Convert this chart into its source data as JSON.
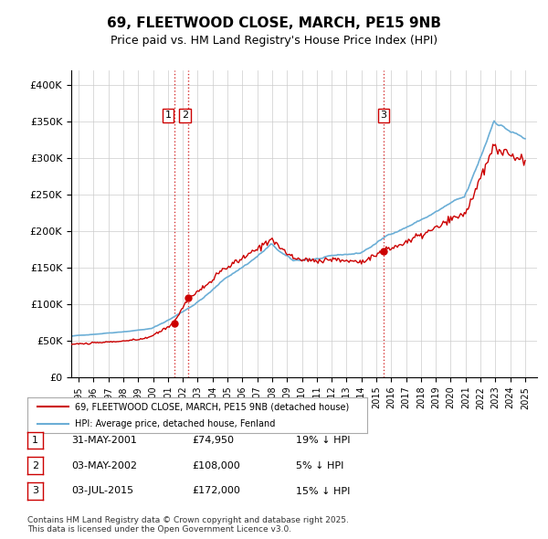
{
  "title": "69, FLEETWOOD CLOSE, MARCH, PE15 9NB",
  "subtitle": "Price paid vs. HM Land Registry's House Price Index (HPI)",
  "legend_line1": "69, FLEETWOOD CLOSE, MARCH, PE15 9NB (detached house)",
  "legend_line2": "HPI: Average price, detached house, Fenland",
  "sales": [
    {
      "label": "1",
      "date_num": 2001.41,
      "price": 74950,
      "date_str": "31-MAY-2001",
      "pct": "19% ↓ HPI"
    },
    {
      "label": "2",
      "date_num": 2002.33,
      "price": 108000,
      "date_str": "03-MAY-2002",
      "pct": "5% ↓ HPI"
    },
    {
      "label": "3",
      "date_num": 2015.5,
      "price": 172000,
      "date_str": "03-JUL-2015",
      "pct": "15% ↓ HPI"
    }
  ],
  "vline_color": "#cc0000",
  "sale_marker_color": "#cc0000",
  "hpi_color": "#6baed6",
  "price_color": "#cc0000",
  "table_rows": [
    [
      "1",
      "31-MAY-2001",
      "£74,950",
      "19% ↓ HPI"
    ],
    [
      "2",
      "03-MAY-2002",
      "£108,000",
      "5% ↓ HPI"
    ],
    [
      "3",
      "03-JUL-2015",
      "£172,000",
      "15% ↓ HPI"
    ]
  ],
  "footer": "Contains HM Land Registry data © Crown copyright and database right 2025.\nThis data is licensed under the Open Government Licence v3.0.",
  "ylim": [
    0,
    420000
  ],
  "xlim_start": 1994.5,
  "xlim_end": 2025.8,
  "background_color": "#ffffff",
  "grid_color": "#cccccc"
}
